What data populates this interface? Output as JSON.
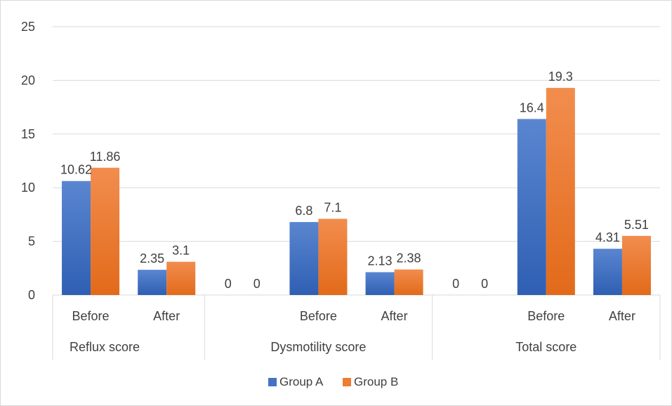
{
  "chart_data": {
    "type": "bar",
    "title": "",
    "xlabel": "",
    "ylabel": "",
    "ylim": [
      0,
      25
    ],
    "yticks": [
      0,
      5,
      10,
      15,
      20,
      25
    ],
    "grid": true,
    "legend_position": "bottom",
    "categories": [
      {
        "group": "Reflux score",
        "label": "Before"
      },
      {
        "group": "Reflux score",
        "label": "After"
      },
      {
        "group": "Dysmotility score",
        "label": ""
      },
      {
        "group": "Dysmotility score",
        "label": "Before"
      },
      {
        "group": "Dysmotility score",
        "label": "After"
      },
      {
        "group": "Total score",
        "label": ""
      },
      {
        "group": "Total score",
        "label": "Before"
      },
      {
        "group": "Total score",
        "label": "After"
      }
    ],
    "groups": [
      "Reflux score",
      "Dysmotility score",
      "Total score"
    ],
    "series": [
      {
        "name": "Group A",
        "color": "#4472C4",
        "values": [
          10.62,
          2.35,
          0,
          6.8,
          2.13,
          0,
          16.4,
          4.31
        ]
      },
      {
        "name": "Group B",
        "color": "#ED7D31",
        "values": [
          11.86,
          3.1,
          0,
          7.1,
          2.38,
          0,
          19.3,
          5.51
        ]
      }
    ],
    "data_labels": [
      [
        "10.62",
        "2.35",
        "0",
        "6.8",
        "2.13",
        "0",
        "16.4",
        "4.31"
      ],
      [
        "11.86",
        "3.1",
        "0",
        "7.1",
        "2.38",
        "0",
        "19.3",
        "5.51"
      ]
    ]
  }
}
